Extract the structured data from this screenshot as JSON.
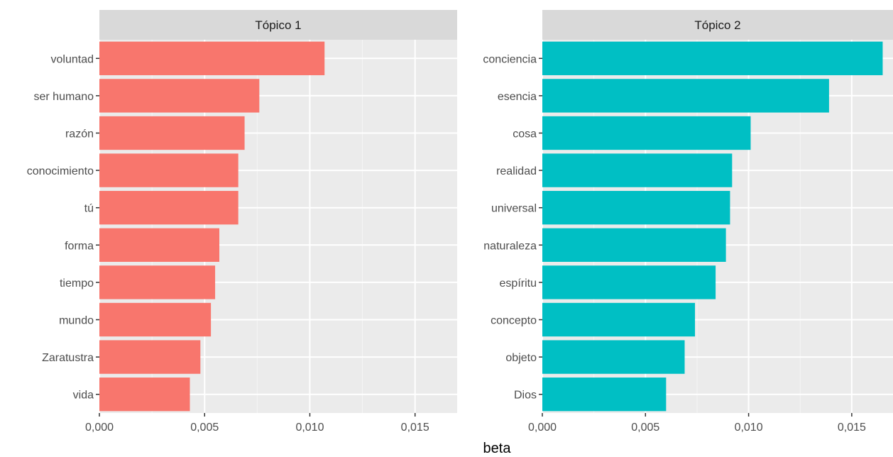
{
  "chart_data": {
    "type": "bar",
    "orientation": "horizontal",
    "xlabel": "beta",
    "xlim": [
      0,
      0.017
    ],
    "xticks": [
      0,
      0.005,
      0.01,
      0.015
    ],
    "xtick_labels": [
      "0,000",
      "0,005",
      "0,010",
      "0,015"
    ],
    "grid": true,
    "legend": "none",
    "panels": [
      {
        "title": "Tópico 1",
        "color": "#F8766D",
        "categories": [
          "voluntad",
          "ser humano",
          "razón",
          "conocimiento",
          "tú",
          "forma",
          "tiempo",
          "mundo",
          "Zaratustra",
          "vida"
        ],
        "values": [
          0.0107,
          0.0076,
          0.0069,
          0.0066,
          0.0066,
          0.0057,
          0.0055,
          0.0053,
          0.0048,
          0.0043
        ]
      },
      {
        "title": "Tópico 2",
        "color": "#00BFC4",
        "categories": [
          "conciencia",
          "esencia",
          "cosa",
          "realidad",
          "universal",
          "naturaleza",
          "espíritu",
          "concepto",
          "objeto",
          "Dios"
        ],
        "values": [
          0.0165,
          0.0139,
          0.0101,
          0.0092,
          0.0091,
          0.0089,
          0.0084,
          0.0074,
          0.0069,
          0.006
        ]
      }
    ]
  }
}
